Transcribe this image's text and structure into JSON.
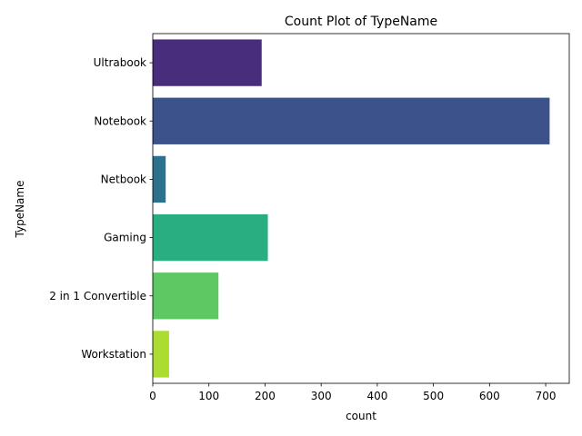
{
  "chart_data": {
    "type": "bar",
    "orientation": "horizontal",
    "title": "Count Plot of TypeName",
    "xlabel": "count",
    "ylabel": "TypeName",
    "categories": [
      "Ultrabook",
      "Notebook",
      "Netbook",
      "Gaming",
      "2 in 1 Convertible",
      "Workstation"
    ],
    "values": [
      194,
      707,
      23,
      205,
      117,
      29
    ],
    "colors": [
      "#472d7b",
      "#3b528b",
      "#2c728e",
      "#28ae80",
      "#5ec962",
      "#addc30"
    ],
    "xlim": [
      0,
      742
    ],
    "xticks": [
      0,
      100,
      200,
      300,
      400,
      500,
      600,
      700
    ],
    "grid": false,
    "legend": "none"
  }
}
